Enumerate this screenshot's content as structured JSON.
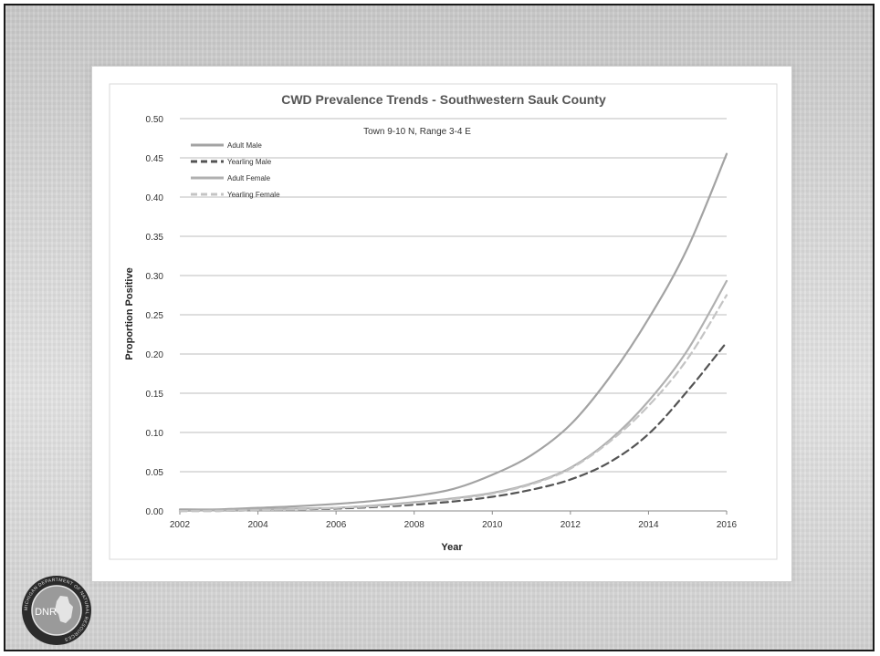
{
  "slide": {
    "logo_text": "DNR",
    "logo_ring_text": "MICHIGAN DEPARTMENT OF NATURAL RESOURCES"
  },
  "chart_data": {
    "type": "line",
    "title": "CWD Prevalence Trends - Southwestern Sauk County",
    "subtitle": "Town 9-10 N, Range 3-4 E",
    "xlabel": "Year",
    "ylabel": "Proportion Positive",
    "xlim": [
      2002,
      2016
    ],
    "ylim": [
      0,
      0.5
    ],
    "x_ticks": [
      "2002",
      "2004",
      "2006",
      "2008",
      "2010",
      "2012",
      "2014",
      "2016"
    ],
    "y_ticks": [
      "0.00",
      "0.05",
      "0.10",
      "0.15",
      "0.20",
      "0.25",
      "0.30",
      "0.35",
      "0.40",
      "0.45",
      "0.50"
    ],
    "grid": "horizontal",
    "legend_position": "top-left",
    "x": [
      2002,
      2003,
      2004,
      2005,
      2006,
      2007,
      2008,
      2009,
      2010,
      2011,
      2012,
      2013,
      2014,
      2015,
      2016
    ],
    "series": [
      {
        "name": "Adult Male",
        "style": "solid",
        "color": "#a3a3a3",
        "values": [
          0.002,
          0.002,
          0.004,
          0.006,
          0.009,
          0.013,
          0.019,
          0.028,
          0.046,
          0.071,
          0.11,
          0.17,
          0.245,
          0.335,
          0.455
        ]
      },
      {
        "name": "Yearling Male",
        "style": "dashed",
        "color": "#545454",
        "values": [
          0.0,
          0.0,
          0.001,
          0.002,
          0.003,
          0.005,
          0.008,
          0.012,
          0.018,
          0.027,
          0.04,
          0.062,
          0.098,
          0.153,
          0.215
        ]
      },
      {
        "name": "Adult Female",
        "style": "solid",
        "color": "#b0b0b0",
        "values": [
          0.0,
          0.001,
          0.002,
          0.003,
          0.004,
          0.007,
          0.011,
          0.016,
          0.023,
          0.035,
          0.055,
          0.09,
          0.14,
          0.205,
          0.293
        ]
      },
      {
        "name": "Yearling Female",
        "style": "dashed",
        "color": "#c4c4c4",
        "values": [
          0.0,
          0.0,
          0.001,
          0.002,
          0.004,
          0.006,
          0.01,
          0.015,
          0.022,
          0.034,
          0.054,
          0.088,
          0.134,
          0.194,
          0.275
        ]
      }
    ]
  }
}
